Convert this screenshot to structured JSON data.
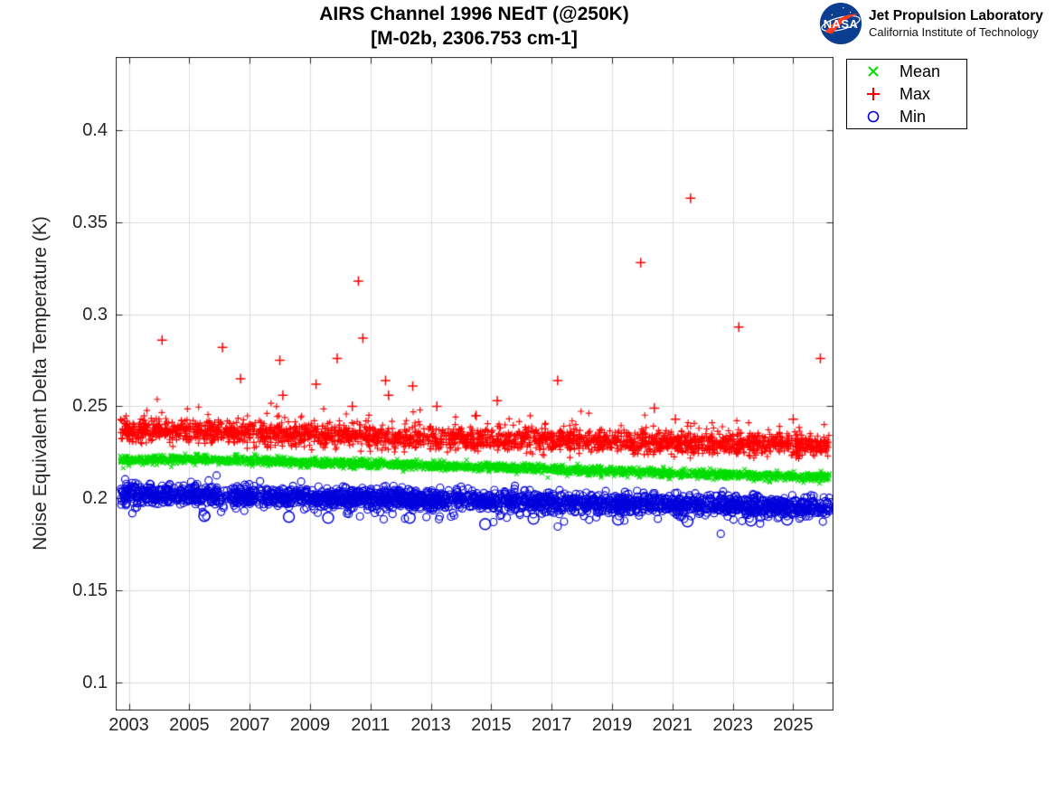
{
  "header": {
    "title_line1": "AIRS Channel 1996 NEdT (@250K)",
    "title_line2": "[M-02b, 2306.753 cm-1]"
  },
  "logo": {
    "org": "NASA",
    "line1": "Jet Propulsion Laboratory",
    "line2": "California Institute of Technology",
    "insignia_blue": "#0b3d91",
    "swoosh_red": "#fc3d21"
  },
  "legend": {
    "items": [
      {
        "label": "Mean",
        "marker": "x",
        "color": "#00dd00"
      },
      {
        "label": "Max",
        "marker": "+",
        "color": "#ff0000"
      },
      {
        "label": "Min",
        "marker": "o",
        "color": "#0000dd"
      }
    ]
  },
  "chart_data": {
    "type": "scatter",
    "title": "AIRS Channel 1996 NEdT (@250K)",
    "subtitle": "[M-02b, 2306.753 cm-1]",
    "xlabel": "",
    "ylabel": "Noise Equivalent Delta Temperature (K)",
    "grid": true,
    "grid_color": "#dcdcdc",
    "axis_color": "#262626",
    "legend_position": "outside-top-right",
    "xlim": [
      2002.58,
      2026.32
    ],
    "ylim": [
      0.085,
      0.4395
    ],
    "xticks": [
      {
        "value": 2003,
        "label": "2003"
      },
      {
        "value": 2005,
        "label": "2005"
      },
      {
        "value": 2007,
        "label": "2007"
      },
      {
        "value": 2009,
        "label": "2009"
      },
      {
        "value": 2011,
        "label": "2011"
      },
      {
        "value": 2013,
        "label": "2013"
      },
      {
        "value": 2015,
        "label": "2015"
      },
      {
        "value": 2017,
        "label": "2017"
      },
      {
        "value": 2019,
        "label": "2019"
      },
      {
        "value": 2021,
        "label": "2021"
      },
      {
        "value": 2023,
        "label": "2023"
      },
      {
        "value": 2025,
        "label": "2025"
      }
    ],
    "yticks": [
      {
        "value": 0.1,
        "label": "0.1"
      },
      {
        "value": 0.15,
        "label": "0.15"
      },
      {
        "value": 0.2,
        "label": "0.2"
      },
      {
        "value": 0.25,
        "label": "0.25"
      },
      {
        "value": 0.3,
        "label": "0.3"
      },
      {
        "value": 0.35,
        "label": "0.35"
      },
      {
        "value": 0.4,
        "label": "0.4"
      }
    ],
    "x_range_of_data": [
      2002.72,
      2026.2
    ],
    "series": [
      {
        "name": "Max",
        "marker": "plus",
        "color": "#ff0000",
        "n": 2600,
        "trend": [
          [
            2002.72,
            0.2375
          ],
          [
            2006,
            0.2358
          ],
          [
            2010,
            0.2338
          ],
          [
            2014,
            0.2322
          ],
          [
            2018,
            0.2312
          ],
          [
            2022,
            0.2298
          ],
          [
            2026.2,
            0.2286
          ]
        ],
        "sigma": 0.003,
        "spike_prob": 0.08,
        "spike_scale": 0.0055,
        "marker_size": 3.6,
        "outliers": [
          [
            2004.1,
            0.286
          ],
          [
            2006.1,
            0.282
          ],
          [
            2006.7,
            0.265
          ],
          [
            2008.0,
            0.275
          ],
          [
            2008.1,
            0.256
          ],
          [
            2009.2,
            0.262
          ],
          [
            2009.9,
            0.276
          ],
          [
            2010.4,
            0.25
          ],
          [
            2010.6,
            0.318
          ],
          [
            2010.75,
            0.287
          ],
          [
            2011.5,
            0.264
          ],
          [
            2011.6,
            0.256
          ],
          [
            2012.4,
            0.261
          ],
          [
            2013.2,
            0.25
          ],
          [
            2014.5,
            0.245
          ],
          [
            2015.2,
            0.253
          ],
          [
            2017.2,
            0.264
          ],
          [
            2019.95,
            0.328
          ],
          [
            2020.4,
            0.249
          ],
          [
            2021.1,
            0.243
          ],
          [
            2021.6,
            0.363
          ],
          [
            2023.2,
            0.293
          ],
          [
            2025.0,
            0.243
          ],
          [
            2025.9,
            0.276
          ]
        ]
      },
      {
        "name": "Mean",
        "marker": "cross",
        "color": "#00dd00",
        "n": 2300,
        "trend": [
          [
            2002.72,
            0.2208
          ],
          [
            2005,
            0.2212
          ],
          [
            2009,
            0.2196
          ],
          [
            2013,
            0.2178
          ],
          [
            2017,
            0.2158
          ],
          [
            2021,
            0.2136
          ],
          [
            2026.2,
            0.2114
          ]
        ],
        "sigma": 0.0012,
        "spike_prob": 0,
        "spike_scale": 0,
        "marker_size": 2.4,
        "outliers": []
      },
      {
        "name": "Min",
        "marker": "circle",
        "color": "#0000dd",
        "n": 2300,
        "trend": [
          [
            2002.72,
            0.2026
          ],
          [
            2006,
            0.2014
          ],
          [
            2010,
            0.2001
          ],
          [
            2014,
            0.199
          ],
          [
            2018,
            0.1977
          ],
          [
            2022,
            0.1963
          ],
          [
            2026.2,
            0.1949
          ]
        ],
        "sigma": 0.0028,
        "spike_prob": 0.05,
        "spike_scale": -0.0038,
        "marker_size": 4.0,
        "outliers": [
          [
            2005.5,
            0.1905
          ],
          [
            2008.3,
            0.19
          ],
          [
            2009.6,
            0.1895
          ],
          [
            2012.3,
            0.1895
          ],
          [
            2014.8,
            0.186
          ],
          [
            2016.4,
            0.189
          ],
          [
            2019.2,
            0.1885
          ],
          [
            2021.5,
            0.1875
          ],
          [
            2023.6,
            0.188
          ],
          [
            2024.8,
            0.1885
          ]
        ]
      }
    ]
  }
}
